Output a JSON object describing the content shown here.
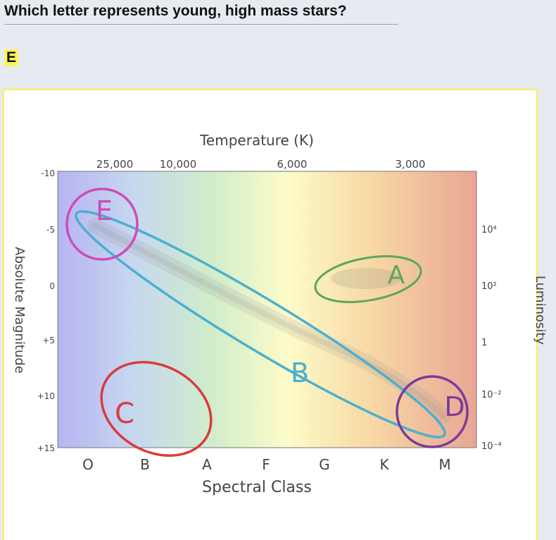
{
  "question": "Which letter represents young, high mass stars?",
  "answer": "E",
  "diagram": {
    "top_axis_title": "Temperature (K)",
    "top_ticks": [
      "25,000",
      "10,000",
      "6,000",
      "3,000"
    ],
    "bottom_axis_title": "Spectral Class",
    "bottom_ticks": [
      "O",
      "B",
      "A",
      "F",
      "G",
      "K",
      "M"
    ],
    "left_ticks": [
      "-10",
      "-5",
      "0",
      "+5",
      "+10",
      "+15"
    ],
    "left_axis_title": "Absolute Magnitude",
    "right_ticks": [
      "10⁴",
      "10²",
      "1",
      "10⁻²",
      "10⁻⁴"
    ],
    "right_axis_title": "Luminosity",
    "regions": [
      {
        "letter": "E",
        "color": "#d04bb8"
      },
      {
        "letter": "A",
        "color": "#5aa85a"
      },
      {
        "letter": "B",
        "color": "#4ab0d0"
      },
      {
        "letter": "C",
        "color": "#d83c3c"
      },
      {
        "letter": "D",
        "color": "#7a3c9a"
      }
    ]
  }
}
